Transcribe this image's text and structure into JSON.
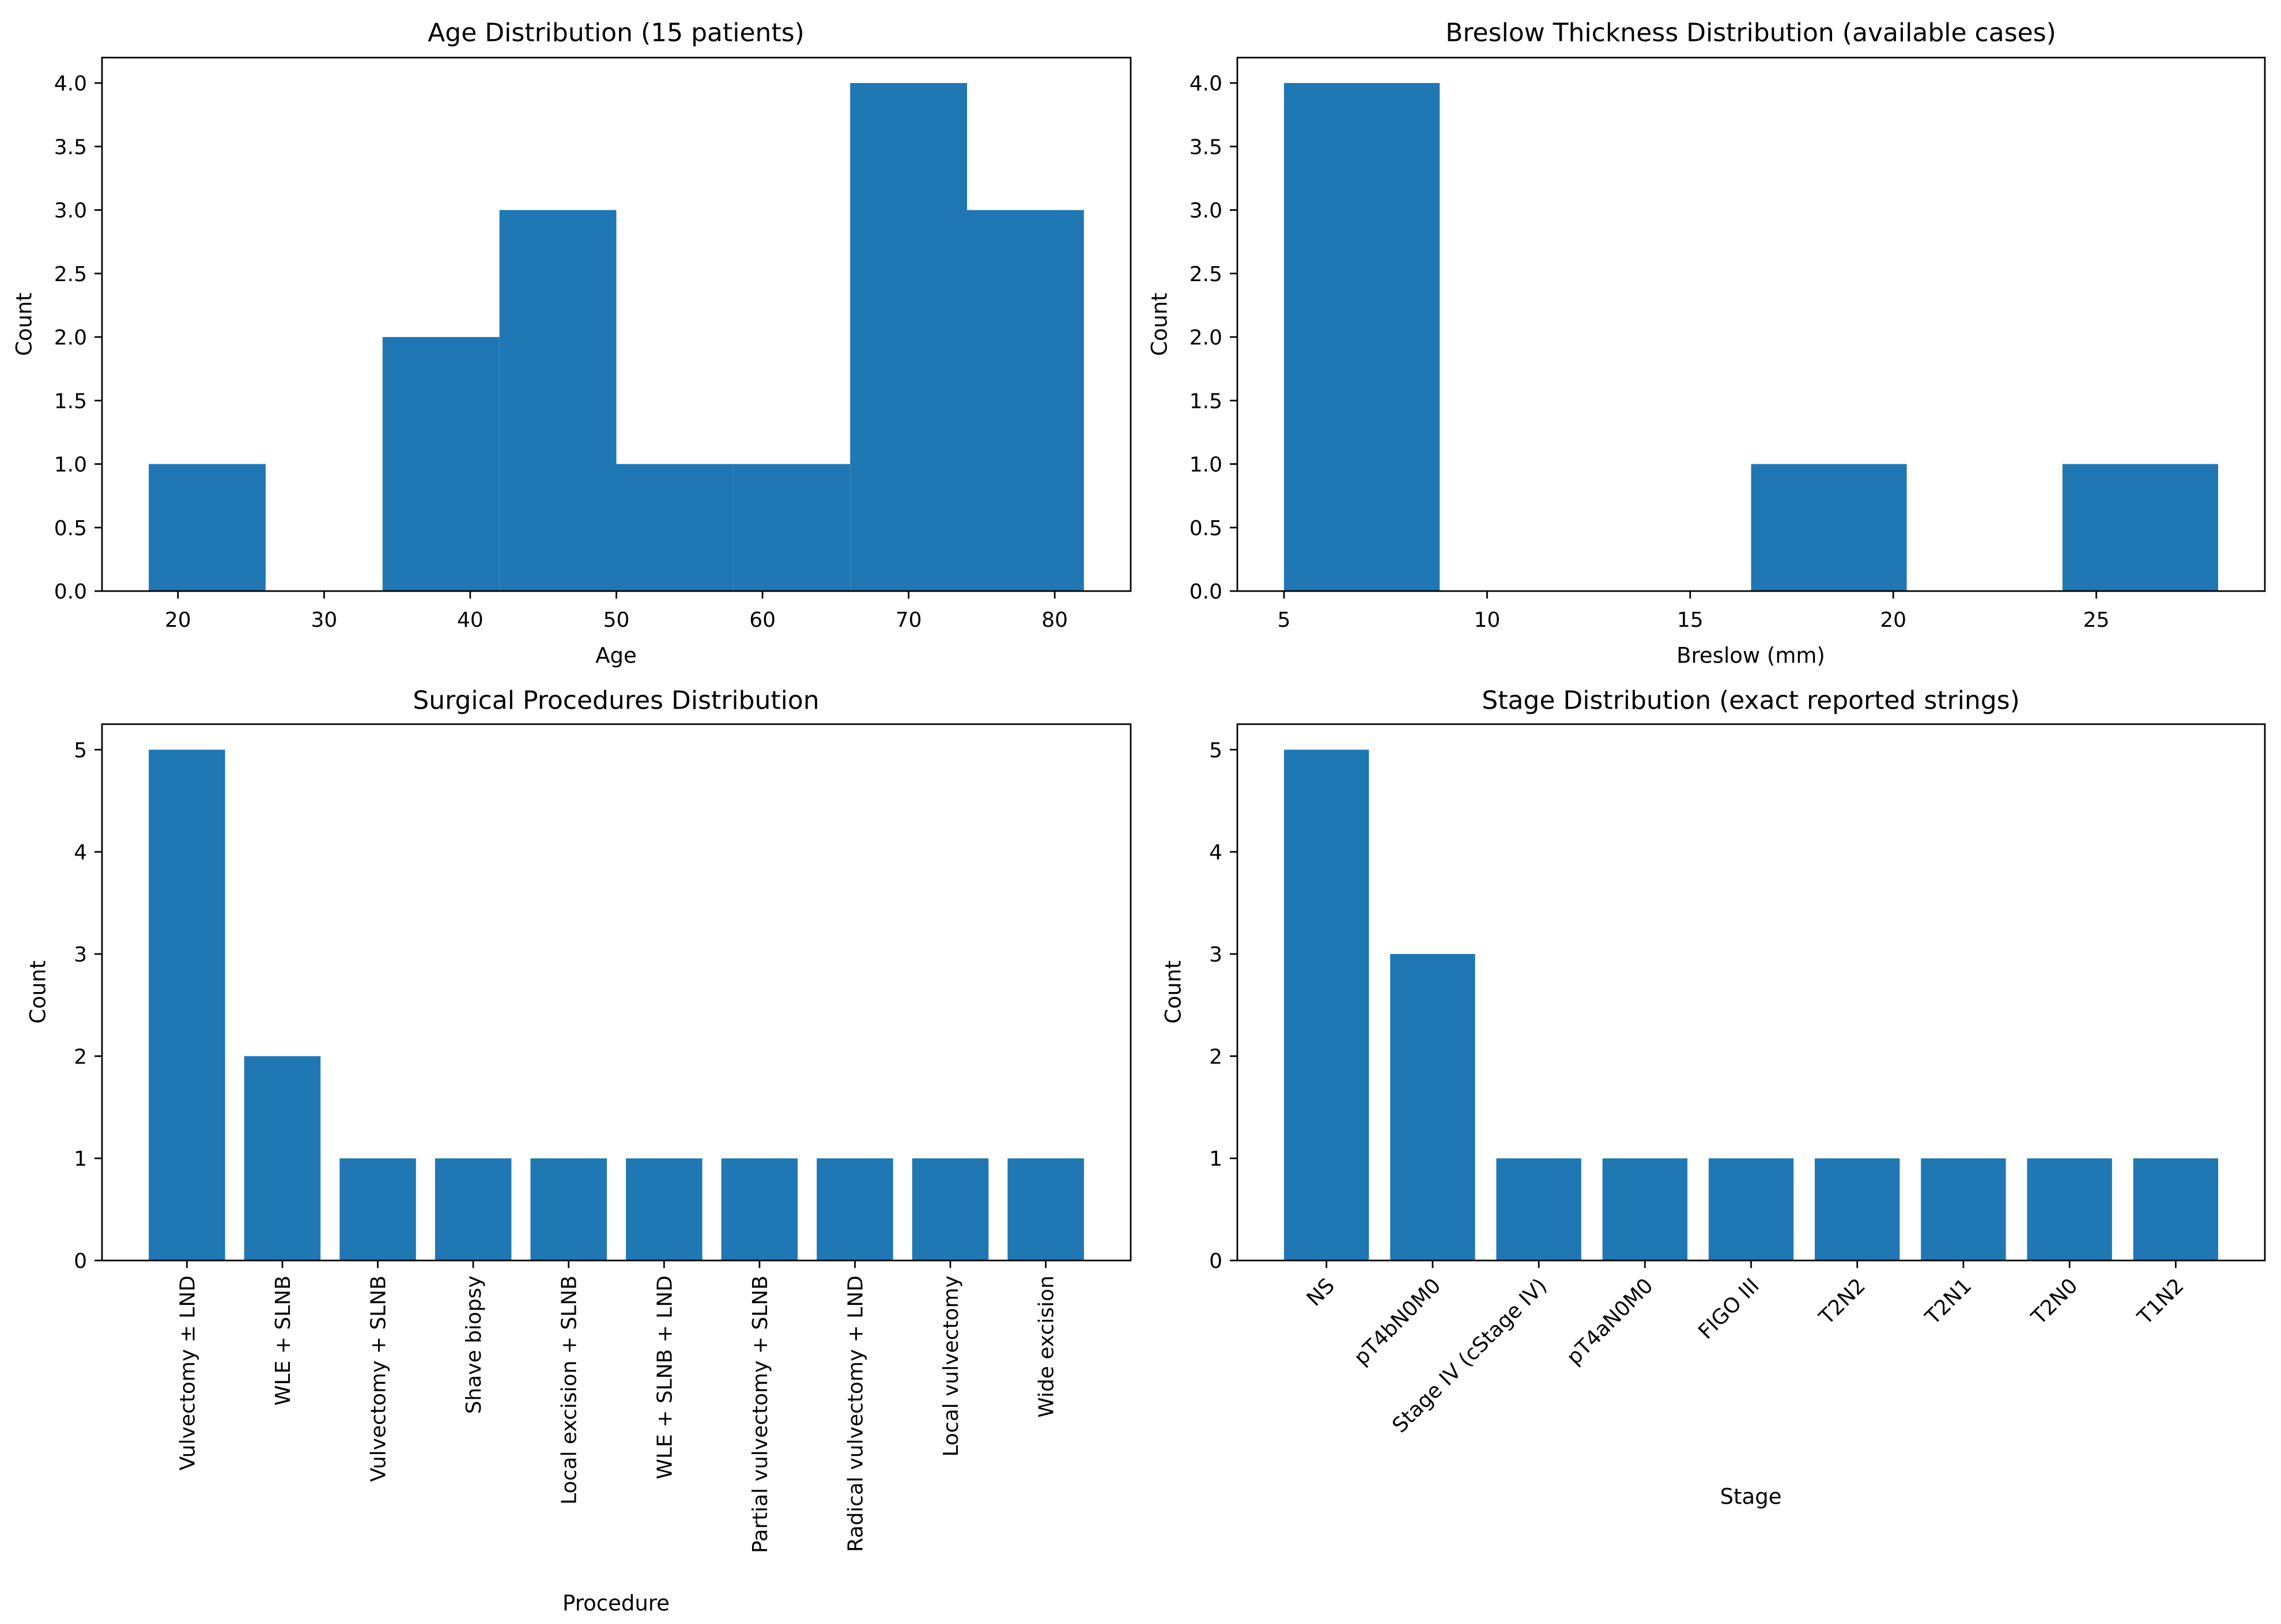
{
  "figure": {
    "background_color": "#ffffff",
    "bar_color": "#1f77b4",
    "axis_color": "#000000"
  },
  "chart_data": [
    {
      "id": "age-distribution",
      "type": "bar",
      "subtype": "histogram",
      "title": "Age Distribution (15 patients)",
      "xlabel": "Age",
      "ylabel": "Count",
      "bin_edges": [
        18,
        26,
        34,
        42,
        50,
        58,
        66,
        74,
        82
      ],
      "counts": [
        1,
        0,
        2,
        3,
        1,
        1,
        4,
        3
      ],
      "xticks": [
        20,
        30,
        40,
        50,
        60,
        70,
        80
      ],
      "yticks": [
        "0.0",
        "0.5",
        "1.0",
        "1.5",
        "2.0",
        "2.5",
        "3.0",
        "3.5",
        "4.0"
      ],
      "xlim": [
        14.8,
        85.2
      ],
      "ylim": [
        0,
        4.2
      ],
      "grid": false
    },
    {
      "id": "breslow-distribution",
      "type": "bar",
      "subtype": "histogram",
      "title": "Breslow Thickness Distribution (available cases)",
      "xlabel": "Breslow (mm)",
      "ylabel": "Count",
      "bin_edges": [
        5,
        8.833,
        12.667,
        16.5,
        20.333,
        24.167,
        28
      ],
      "counts": [
        4,
        0,
        0,
        1,
        0,
        1
      ],
      "xticks": [
        5,
        10,
        15,
        20,
        25
      ],
      "yticks": [
        "0.0",
        "0.5",
        "1.0",
        "1.5",
        "2.0",
        "2.5",
        "3.0",
        "3.5",
        "4.0"
      ],
      "xlim": [
        3.85,
        29.15
      ],
      "ylim": [
        0,
        4.2
      ],
      "grid": false
    },
    {
      "id": "procedures-distribution",
      "type": "bar",
      "title": "Surgical Procedures Distribution",
      "xlabel": "Procedure",
      "ylabel": "Count",
      "categories": [
        "Vulvectomy ± LND",
        "WLE + SLNB",
        "Vulvectomy + SLNB",
        "Shave biopsy",
        "Local excision + SLNB",
        "WLE + SLNB + LND",
        "Partial vulvectomy + SLNB",
        "Radical vulvectomy + LND",
        "Local vulvectomy",
        "Wide excision"
      ],
      "values": [
        5,
        2,
        1,
        1,
        1,
        1,
        1,
        1,
        1,
        1
      ],
      "yticks": [
        "0",
        "1",
        "2",
        "3",
        "4",
        "5"
      ],
      "ylim": [
        0,
        5.25
      ],
      "label_rotation": 90,
      "grid": false
    },
    {
      "id": "stage-distribution",
      "type": "bar",
      "title": "Stage Distribution (exact reported strings)",
      "xlabel": "Stage",
      "ylabel": "Count",
      "categories": [
        "NS",
        "pT4bN0M0",
        "Stage IV (cStage IV)",
        "pT4aN0M0",
        "FIGO III",
        "T2N2",
        "T2N1",
        "T2N0",
        "T1N2"
      ],
      "values": [
        5,
        3,
        1,
        1,
        1,
        1,
        1,
        1,
        1
      ],
      "yticks": [
        "0",
        "1",
        "2",
        "3",
        "4",
        "5"
      ],
      "ylim": [
        0,
        5.25
      ],
      "label_rotation": 45,
      "grid": false
    }
  ]
}
